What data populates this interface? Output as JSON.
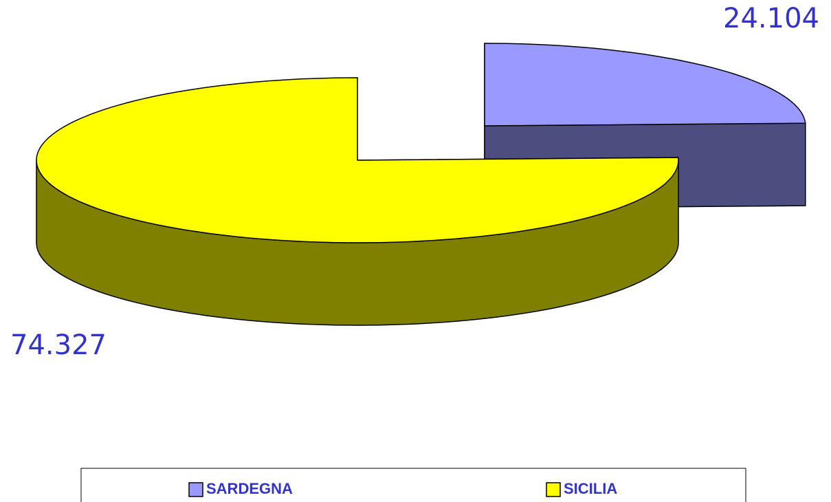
{
  "chart_data": {
    "type": "pie",
    "categories": [
      "SARDEGNA",
      "SICILIA"
    ],
    "values": [
      24104,
      74327
    ],
    "value_labels": [
      "24.104",
      "74.327"
    ],
    "colors": [
      "#9999ff",
      "#ffff00"
    ],
    "side_colors": [
      "#4d4d80",
      "#808000"
    ],
    "legend": "bottom"
  }
}
